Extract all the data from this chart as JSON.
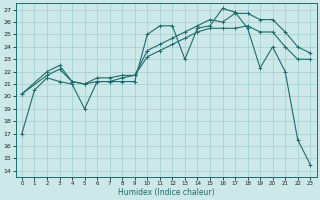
{
  "xlabel": "Humidex (Indice chaleur)",
  "xlim": [
    -0.5,
    23.5
  ],
  "ylim": [
    13.5,
    27.5
  ],
  "xticks": [
    0,
    1,
    2,
    3,
    4,
    5,
    6,
    7,
    8,
    9,
    10,
    11,
    12,
    13,
    14,
    15,
    16,
    17,
    18,
    19,
    20,
    21,
    22,
    23
  ],
  "yticks": [
    14,
    15,
    16,
    17,
    18,
    19,
    20,
    21,
    22,
    23,
    24,
    25,
    26,
    27
  ],
  "bg_color": "#cde8e8",
  "grid_color": "#9ecece",
  "line_color": "#1e6b6b",
  "line1_x": [
    0,
    1,
    2,
    3,
    4,
    5,
    6,
    7,
    8,
    9,
    10,
    11,
    12,
    13,
    14,
    15,
    16,
    17,
    18,
    19,
    20,
    21,
    22,
    23
  ],
  "line1_y": [
    17.0,
    20.5,
    21.5,
    21.2,
    21.0,
    19.0,
    21.2,
    21.2,
    21.2,
    21.2,
    25.0,
    25.7,
    25.7,
    23.0,
    25.5,
    25.7,
    27.1,
    26.8,
    25.5,
    22.3,
    24.0,
    22.0,
    16.5,
    14.5
  ],
  "line2_x": [
    0,
    2,
    3,
    4,
    5,
    6,
    7,
    8,
    9,
    10,
    11,
    12,
    13,
    14,
    15,
    16,
    17,
    18,
    19,
    20,
    21,
    22,
    23
  ],
  "line2_y": [
    20.2,
    21.7,
    22.2,
    21.2,
    21.0,
    21.2,
    21.2,
    21.5,
    21.7,
    23.2,
    23.7,
    24.2,
    24.7,
    25.2,
    25.5,
    25.5,
    25.5,
    25.7,
    25.2,
    25.2,
    24.0,
    23.0,
    23.0
  ],
  "line3_x": [
    0,
    2,
    3,
    4,
    5,
    6,
    7,
    8,
    9,
    10,
    11,
    12,
    13,
    14,
    15,
    16,
    17,
    18,
    19,
    20,
    21,
    22,
    23
  ],
  "line3_y": [
    20.2,
    22.0,
    22.5,
    21.2,
    21.0,
    21.5,
    21.5,
    21.7,
    21.7,
    23.7,
    24.2,
    24.7,
    25.2,
    25.7,
    26.2,
    26.0,
    26.7,
    26.7,
    26.2,
    26.2,
    25.2,
    24.0,
    23.5
  ]
}
